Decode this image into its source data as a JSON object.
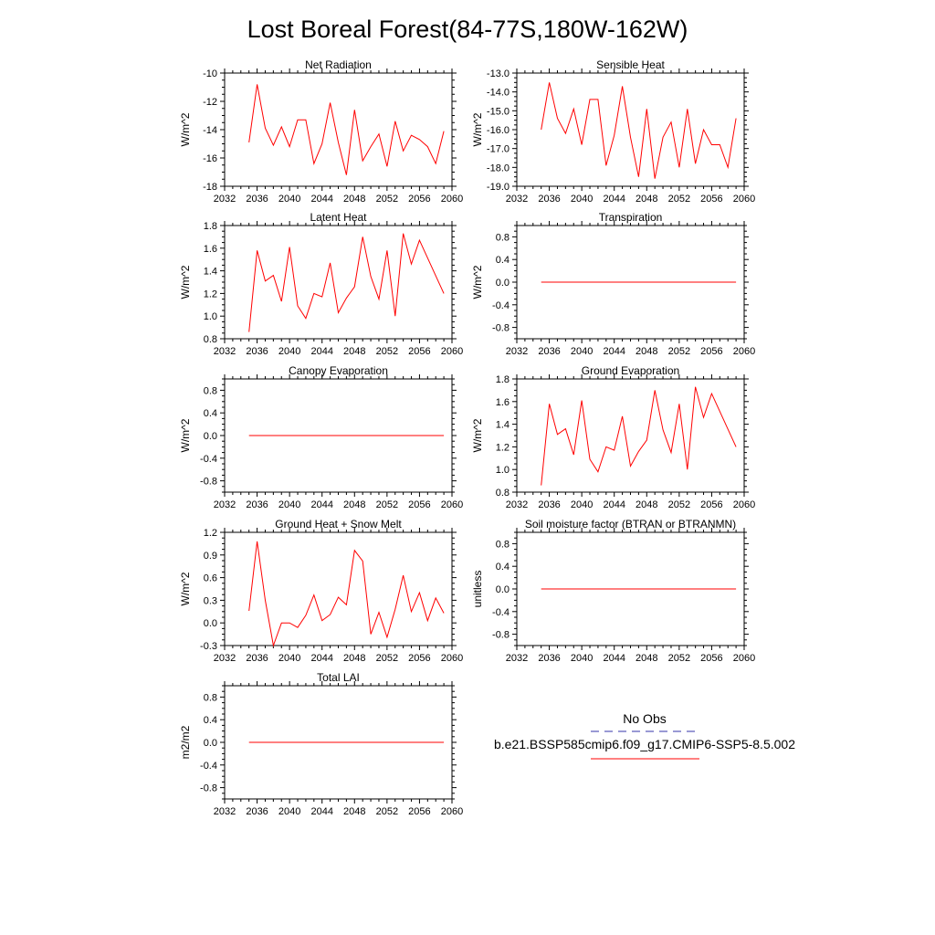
{
  "figure": {
    "title": "Lost Boreal Forest(84-77S,180W-162W)"
  },
  "legend": {
    "obs_label": "No Obs",
    "model_label": "b.e21.BSSP585cmip6.f09_g17.CMIP6-SSP5-8.5.002",
    "obs_color": "#3333aa",
    "model_color": "#ff0000"
  },
  "chart_data": [
    {
      "type": "line",
      "title": "Net Radiation",
      "ylabel": "W/m^2",
      "xlim": [
        2032,
        2060
      ],
      "xticks": [
        2032,
        2036,
        2040,
        2044,
        2048,
        2052,
        2056,
        2060
      ],
      "ylim": [
        -18,
        -10
      ],
      "yticks": [
        -18,
        -16,
        -14,
        -12,
        -10
      ],
      "ytick_labels": [
        "-18",
        "-16",
        "-14",
        "-12",
        "-10"
      ],
      "x": [
        2035,
        2036,
        2037,
        2038,
        2039,
        2040,
        2041,
        2042,
        2043,
        2044,
        2045,
        2046,
        2047,
        2048,
        2049,
        2050,
        2051,
        2052,
        2053,
        2054,
        2055,
        2056,
        2057,
        2058,
        2059
      ],
      "values": [
        -14.9,
        -10.8,
        -13.9,
        -15.1,
        -13.8,
        -15.2,
        -13.3,
        -13.3,
        -16.4,
        -15.0,
        -12.1,
        -14.9,
        -17.2,
        -12.6,
        -16.2,
        -15.2,
        -14.3,
        -16.6,
        -13.4,
        -15.5,
        -14.4,
        -14.7,
        -15.2,
        -16.4,
        -14.1
      ],
      "color": "#ff0000"
    },
    {
      "type": "line",
      "title": "Sensible Heat",
      "ylabel": "W/m^2",
      "xlim": [
        2032,
        2060
      ],
      "xticks": [
        2032,
        2036,
        2040,
        2044,
        2048,
        2052,
        2056,
        2060
      ],
      "ylim": [
        -19,
        -13
      ],
      "yticks": [
        -19,
        -18,
        -17,
        -16,
        -15,
        -14,
        -13
      ],
      "ytick_labels": [
        "-19.0",
        "-18.0",
        "-17.0",
        "-16.0",
        "-15.0",
        "-14.0",
        "-13.0"
      ],
      "x": [
        2035,
        2036,
        2037,
        2038,
        2039,
        2040,
        2041,
        2042,
        2043,
        2044,
        2045,
        2046,
        2047,
        2048,
        2049,
        2050,
        2051,
        2052,
        2053,
        2054,
        2055,
        2056,
        2057,
        2058,
        2059
      ],
      "values": [
        -16.0,
        -13.5,
        -15.4,
        -16.2,
        -14.9,
        -16.8,
        -14.4,
        -14.4,
        -17.9,
        -16.3,
        -13.7,
        -16.4,
        -18.5,
        -14.9,
        -18.6,
        -16.4,
        -15.6,
        -18.0,
        -14.9,
        -17.8,
        -16.0,
        -16.8,
        -16.8,
        -18.0,
        -15.4
      ],
      "color": "#ff0000"
    },
    {
      "type": "line",
      "title": "Latent Heat",
      "ylabel": "W/m^2",
      "xlim": [
        2032,
        2060
      ],
      "xticks": [
        2032,
        2036,
        2040,
        2044,
        2048,
        2052,
        2056,
        2060
      ],
      "ylim": [
        0.8,
        1.8
      ],
      "yticks": [
        0.8,
        1.0,
        1.2,
        1.4,
        1.6,
        1.8
      ],
      "ytick_labels": [
        "0.8",
        "1.0",
        "1.2",
        "1.4",
        "1.6",
        "1.8"
      ],
      "x": [
        2035,
        2036,
        2037,
        2038,
        2039,
        2040,
        2041,
        2042,
        2043,
        2044,
        2045,
        2046,
        2047,
        2048,
        2049,
        2050,
        2051,
        2052,
        2053,
        2054,
        2055,
        2056,
        2059
      ],
      "values": [
        0.86,
        1.58,
        1.31,
        1.36,
        1.13,
        1.61,
        1.09,
        0.98,
        1.2,
        1.17,
        1.47,
        1.03,
        1.16,
        1.26,
        1.7,
        1.35,
        1.15,
        1.58,
        1.0,
        1.73,
        1.46,
        1.67,
        1.2
      ],
      "color": "#ff0000"
    },
    {
      "type": "line",
      "title": "Transpiration",
      "ylabel": "W/m^2",
      "xlim": [
        2032,
        2060
      ],
      "xticks": [
        2032,
        2036,
        2040,
        2044,
        2048,
        2052,
        2056,
        2060
      ],
      "ylim": [
        -1.0,
        1.0
      ],
      "yticks": [
        -0.8,
        -0.4,
        0.0,
        0.4,
        0.8
      ],
      "ytick_labels": [
        "-0.8",
        "-0.4",
        "0.0",
        "0.4",
        "0.8"
      ],
      "x": [
        2035,
        2059
      ],
      "values": [
        0.0,
        0.0
      ],
      "color": "#ff0000"
    },
    {
      "type": "line",
      "title": "Canopy Evaporation",
      "ylabel": "W/m^2",
      "xlim": [
        2032,
        2060
      ],
      "xticks": [
        2032,
        2036,
        2040,
        2044,
        2048,
        2052,
        2056,
        2060
      ],
      "ylim": [
        -1.0,
        1.0
      ],
      "yticks": [
        -0.8,
        -0.4,
        0.0,
        0.4,
        0.8
      ],
      "ytick_labels": [
        "-0.8",
        "-0.4",
        "0.0",
        "0.4",
        "0.8"
      ],
      "x": [
        2035,
        2059
      ],
      "values": [
        0.0,
        0.0
      ],
      "color": "#ff0000"
    },
    {
      "type": "line",
      "title": "Ground Evaporation",
      "ylabel": "W/m^2",
      "xlim": [
        2032,
        2060
      ],
      "xticks": [
        2032,
        2036,
        2040,
        2044,
        2048,
        2052,
        2056,
        2060
      ],
      "ylim": [
        0.8,
        1.8
      ],
      "yticks": [
        0.8,
        1.0,
        1.2,
        1.4,
        1.6,
        1.8
      ],
      "ytick_labels": [
        "0.8",
        "1.0",
        "1.2",
        "1.4",
        "1.6",
        "1.8"
      ],
      "x": [
        2035,
        2036,
        2037,
        2038,
        2039,
        2040,
        2041,
        2042,
        2043,
        2044,
        2045,
        2046,
        2047,
        2048,
        2049,
        2050,
        2051,
        2052,
        2053,
        2054,
        2055,
        2056,
        2059
      ],
      "values": [
        0.86,
        1.58,
        1.31,
        1.36,
        1.13,
        1.61,
        1.09,
        0.98,
        1.2,
        1.17,
        1.47,
        1.03,
        1.16,
        1.26,
        1.7,
        1.35,
        1.15,
        1.58,
        1.0,
        1.73,
        1.46,
        1.67,
        1.2
      ],
      "color": "#ff0000"
    },
    {
      "type": "line",
      "title": "Ground Heat + Snow Melt",
      "ylabel": "W/m^2",
      "xlim": [
        2032,
        2060
      ],
      "xticks": [
        2032,
        2036,
        2040,
        2044,
        2048,
        2052,
        2056,
        2060
      ],
      "ylim": [
        -0.3,
        1.2
      ],
      "yticks": [
        -0.3,
        0.0,
        0.3,
        0.6,
        0.9,
        1.2
      ],
      "ytick_labels": [
        "-0.3",
        "0.0",
        "0.3",
        "0.6",
        "0.9",
        "1.2"
      ],
      "x": [
        2035,
        2036,
        2037,
        2038,
        2039,
        2040,
        2041,
        2042,
        2043,
        2044,
        2045,
        2046,
        2047,
        2048,
        2049,
        2050,
        2051,
        2052,
        2053,
        2054,
        2055,
        2056,
        2057,
        2058,
        2059
      ],
      "values": [
        0.16,
        1.08,
        0.3,
        -0.3,
        0.0,
        0.0,
        -0.06,
        0.1,
        0.37,
        0.03,
        0.11,
        0.34,
        0.24,
        0.96,
        0.82,
        -0.15,
        0.14,
        -0.19,
        0.18,
        0.63,
        0.15,
        0.4,
        0.03,
        0.33,
        0.13
      ],
      "color": "#ff0000"
    },
    {
      "type": "line",
      "title": "Soil moisture factor (BTRAN or BTRANMN)",
      "ylabel": "unitless",
      "xlim": [
        2032,
        2060
      ],
      "xticks": [
        2032,
        2036,
        2040,
        2044,
        2048,
        2052,
        2056,
        2060
      ],
      "ylim": [
        -1.0,
        1.0
      ],
      "yticks": [
        -0.8,
        -0.4,
        0.0,
        0.4,
        0.8
      ],
      "ytick_labels": [
        "-0.8",
        "-0.4",
        "0.0",
        "0.4",
        "0.8"
      ],
      "x": [
        2035,
        2059
      ],
      "values": [
        0.0,
        0.0
      ],
      "color": "#ff0000"
    },
    {
      "type": "line",
      "title": "Total LAI",
      "ylabel": "m2/m2",
      "xlim": [
        2032,
        2060
      ],
      "xticks": [
        2032,
        2036,
        2040,
        2044,
        2048,
        2052,
        2056,
        2060
      ],
      "ylim": [
        -1.0,
        1.0
      ],
      "yticks": [
        -0.8,
        -0.4,
        0.0,
        0.4,
        0.8
      ],
      "ytick_labels": [
        "-0.8",
        "-0.4",
        "0.0",
        "0.4",
        "0.8"
      ],
      "x": [
        2035,
        2059
      ],
      "values": [
        0.0,
        0.0
      ],
      "color": "#ff0000"
    }
  ]
}
